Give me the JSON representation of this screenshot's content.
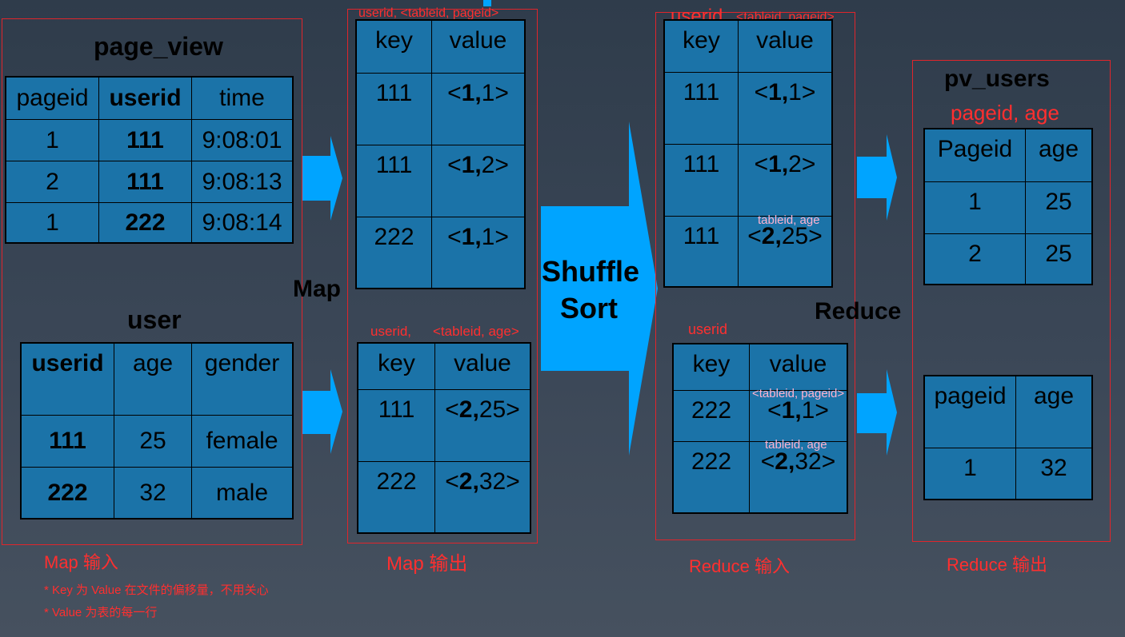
{
  "colors": {
    "table_fill": "#1b73a8",
    "arrow": "#00a4ff",
    "red": "#ff2f2f",
    "pink": "#ffb3d0"
  },
  "map_input": {
    "page_view": {
      "title": "page_view",
      "headers": [
        "pageid",
        "userid",
        "time"
      ],
      "rows": [
        [
          "1",
          "111",
          "9:08:01"
        ],
        [
          "2",
          "111",
          "9:08:13"
        ],
        [
          "1",
          "222",
          "9:08:14"
        ]
      ]
    },
    "user": {
      "title": "user",
      "headers": [
        "userid",
        "age",
        "gender"
      ],
      "rows": [
        [
          "111",
          "25",
          "female"
        ],
        [
          "222",
          "32",
          "male"
        ]
      ]
    },
    "caption": "Map 输入",
    "notes": [
      "* Key 为 Value 在文件的偏移量，不用关心",
      "* Value 为表的每一行"
    ]
  },
  "map_label": "Map",
  "map_output": {
    "top_label": "userid, <tableid, pageid>",
    "top": {
      "headers": [
        "key",
        "value"
      ],
      "rows": [
        [
          "111",
          "<1,1>"
        ],
        [
          "111",
          "<1,2>"
        ],
        [
          "222",
          "<1,1>"
        ]
      ]
    },
    "bottom_label_key": "userid,",
    "bottom_label_value": "<tableid, age>",
    "bottom": {
      "headers": [
        "key",
        "value"
      ],
      "rows": [
        [
          "111",
          "<2,25>"
        ],
        [
          "222",
          "<2,32>"
        ]
      ]
    },
    "caption": "Map 输出"
  },
  "shuffle": {
    "line1": "Shuffle",
    "line2": "Sort"
  },
  "reduce_input": {
    "top_label_key": "userid",
    "top_label_value": "<tableid, pageid>",
    "top": {
      "headers": [
        "key",
        "value"
      ],
      "rows": [
        [
          "111",
          "<1,1>"
        ],
        [
          "111",
          "<1,2>"
        ],
        [
          "111",
          "<2,25>"
        ]
      ]
    },
    "top_row_note": "tableid, age",
    "bottom_label": "userid",
    "bottom": {
      "headers": [
        "key",
        "value"
      ],
      "rows": [
        [
          "222",
          "<1,1>"
        ],
        [
          "222",
          "<2,32>"
        ]
      ]
    },
    "bottom_note_1": "<tableid, pageid>",
    "bottom_note_2": "tableid, age",
    "caption": "Reduce 输入"
  },
  "reduce_label": "Reduce",
  "reduce_output": {
    "title": "pv_users",
    "subtitle": "pageid, age",
    "top": {
      "headers": [
        "Pageid",
        "age"
      ],
      "rows": [
        [
          "1",
          "25"
        ],
        [
          "2",
          "25"
        ]
      ]
    },
    "bottom": {
      "headers": [
        "pageid",
        "age"
      ],
      "rows": [
        [
          "1",
          "32"
        ]
      ]
    },
    "caption": "Reduce 输出"
  }
}
